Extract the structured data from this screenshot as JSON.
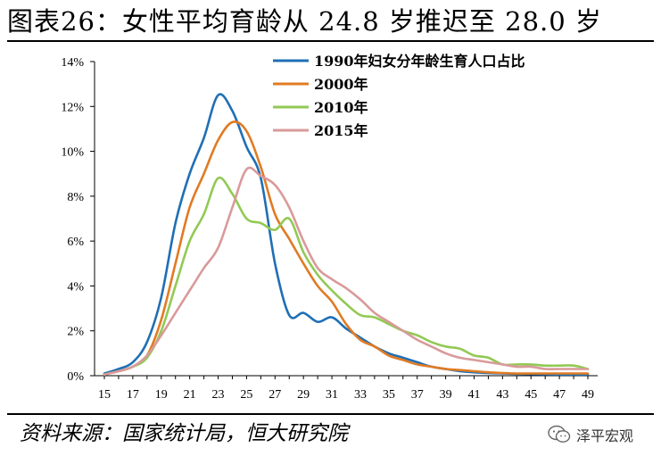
{
  "page_title": "图表26：女性平均育龄从 24.8 岁推迟至 28.0 岁",
  "source_note": "资料来源：国家统计局，恒大研究院",
  "watermark": {
    "name": "泽平宏观",
    "icon": "wechat-icon"
  },
  "colors": {
    "s1990": "#1f6fb5",
    "s2000": "#e07b23",
    "s2010": "#92c954",
    "s2015": "#d99a9a"
  },
  "chart_data": {
    "type": "line",
    "title": "",
    "xlabel": "",
    "ylabel": "",
    "ylim": [
      0,
      14
    ],
    "xlim": [
      15,
      49
    ],
    "grid": false,
    "legend": "top-right",
    "x_ticks": [
      "15",
      "17",
      "19",
      "21",
      "23",
      "25",
      "27",
      "29",
      "31",
      "33",
      "35",
      "37",
      "39",
      "41",
      "43",
      "45",
      "47",
      "49"
    ],
    "y_ticks": [
      "0%",
      "2%",
      "4%",
      "6%",
      "8%",
      "10%",
      "12%",
      "14%"
    ],
    "y_unit": "%",
    "x": [
      15,
      16,
      17,
      18,
      19,
      20,
      21,
      22,
      23,
      24,
      25,
      26,
      27,
      28,
      29,
      30,
      31,
      32,
      33,
      34,
      35,
      36,
      37,
      38,
      39,
      40,
      41,
      42,
      43,
      44,
      45,
      46,
      47,
      48,
      49
    ],
    "series": [
      {
        "name": "1990年妇女分年龄生育人口占比",
        "color_key": "s1990",
        "values": [
          0.1,
          0.3,
          0.6,
          1.5,
          3.5,
          6.8,
          9.0,
          10.6,
          12.5,
          11.8,
          10.2,
          8.8,
          5.0,
          2.7,
          2.8,
          2.4,
          2.6,
          2.1,
          1.7,
          1.3,
          1.0,
          0.8,
          0.6,
          0.4,
          0.3,
          0.2,
          0.15,
          0.12,
          0.1,
          0.08,
          0.07,
          0.06,
          0.05,
          0.05,
          0.05
        ]
      },
      {
        "name": "2000年",
        "color_key": "s2000",
        "values": [
          0.05,
          0.2,
          0.4,
          0.9,
          2.5,
          5.0,
          7.5,
          9.0,
          10.5,
          11.3,
          10.9,
          9.3,
          7.2,
          6.1,
          5.0,
          4.0,
          3.3,
          2.3,
          1.6,
          1.3,
          0.9,
          0.7,
          0.5,
          0.4,
          0.3,
          0.25,
          0.2,
          0.15,
          0.12,
          0.1,
          0.1,
          0.1,
          0.1,
          0.1,
          0.1
        ]
      },
      {
        "name": "2010年",
        "color_key": "s2010",
        "values": [
          0.05,
          0.2,
          0.4,
          0.8,
          2.0,
          4.0,
          6.0,
          7.2,
          8.8,
          8.1,
          7.0,
          6.8,
          6.5,
          7.0,
          5.5,
          4.5,
          3.8,
          3.2,
          2.7,
          2.6,
          2.3,
          2.0,
          1.8,
          1.5,
          1.3,
          1.2,
          0.9,
          0.8,
          0.5,
          0.5,
          0.5,
          0.45,
          0.45,
          0.45,
          0.3
        ]
      },
      {
        "name": "2015年",
        "color_key": "s2015",
        "values": [
          0.05,
          0.2,
          0.4,
          0.9,
          1.8,
          2.8,
          3.8,
          4.8,
          5.7,
          7.5,
          9.2,
          8.9,
          8.5,
          7.5,
          6.0,
          4.8,
          4.3,
          3.9,
          3.4,
          2.8,
          2.4,
          2.0,
          1.6,
          1.3,
          1.0,
          0.8,
          0.7,
          0.6,
          0.5,
          0.4,
          0.4,
          0.3,
          0.3,
          0.3,
          0.3
        ]
      }
    ]
  }
}
